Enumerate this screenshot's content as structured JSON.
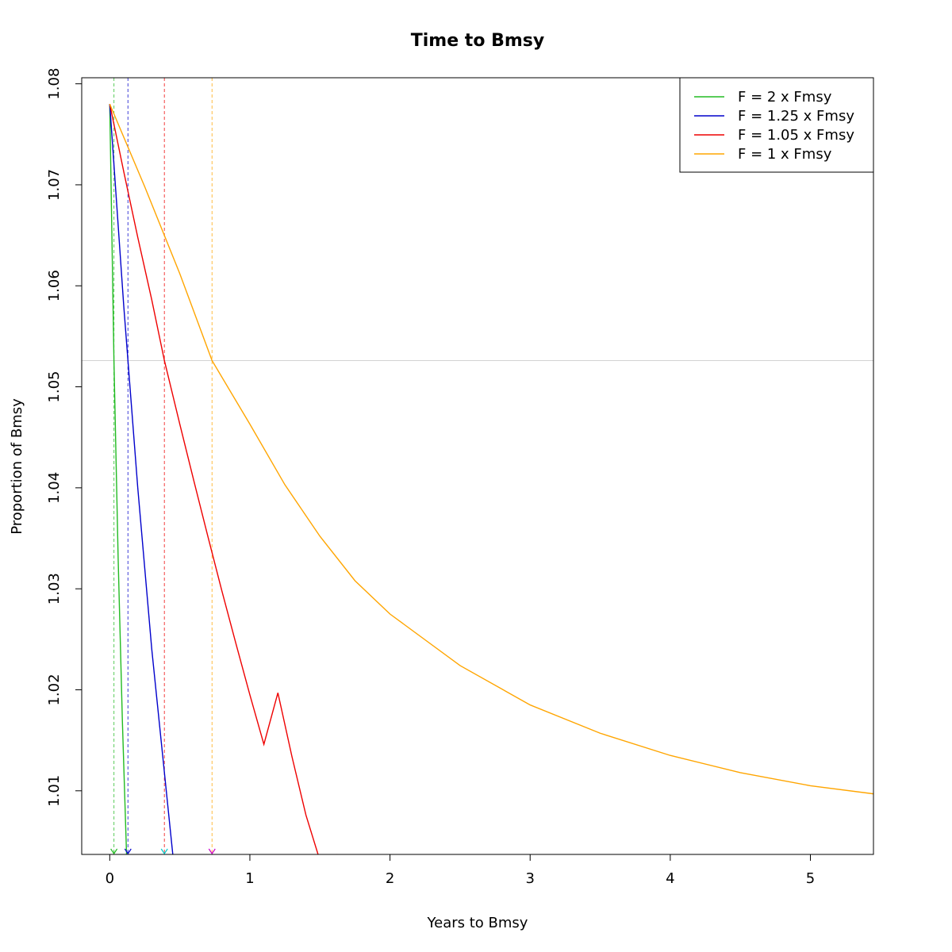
{
  "chart_data": {
    "type": "line",
    "title": "Time to Bmsy",
    "xlabel": "Years to Bmsy",
    "ylabel": "Proportion of Bmsy",
    "xlim": [
      -0.2,
      5.45
    ],
    "ylim": [
      1.0037,
      1.0806
    ],
    "xticks": [
      0,
      1,
      2,
      3,
      4,
      5
    ],
    "xtick_labels": [
      "0",
      "1",
      "2",
      "3",
      "4",
      "5"
    ],
    "yticks": [
      1.01,
      1.02,
      1.03,
      1.04,
      1.05,
      1.06,
      1.07,
      1.08
    ],
    "ytick_labels": [
      "1.01",
      "1.02",
      "1.03",
      "1.04",
      "1.05",
      "1.06",
      "1.07",
      "1.08"
    ],
    "grid": false,
    "legend_position": "top-right",
    "reference_line": {
      "y": 1.0526,
      "color": "#d3d3d3"
    },
    "series": [
      {
        "name": "F = 2 x Fmsy",
        "color": "#22bb22",
        "marker_color": "#22bb22",
        "vline_x": 0.03,
        "x": [
          0,
          0.03,
          0.06,
          0.09,
          0.12
        ],
        "y": [
          1.078,
          1.0526,
          1.033,
          1.017,
          1.0037
        ]
      },
      {
        "name": "F = 1.25 x Fmsy",
        "color": "#0000cc",
        "marker_color": "#0000cc",
        "vline_x": 0.13,
        "x": [
          0,
          0.1,
          0.2,
          0.3,
          0.45
        ],
        "y": [
          1.078,
          1.058,
          1.04,
          1.024,
          1.0037
        ]
      },
      {
        "name": "F = 1.05 x Fmsy",
        "color": "#ee0000",
        "marker_color": "#00cccc",
        "vline_x": 0.39,
        "x": [
          0,
          0.1,
          0.2,
          0.3,
          0.39,
          0.5,
          0.6,
          0.7,
          0.8,
          0.9,
          1.0,
          1.1,
          1.2,
          1.3,
          1.4,
          1.5,
          1.62
        ],
        "y": [
          1.078,
          1.0713,
          1.0648,
          1.0586,
          1.0526,
          1.0463,
          1.0407,
          1.0352,
          1.0298,
          1.0246,
          1.0195,
          1.0146,
          1.0197,
          1.0134,
          1.0076,
          1.0031,
          1.0037
        ]
      },
      {
        "name": "F = 1 x Fmsy",
        "color": "#ffa500",
        "marker_color": "#cc00cc",
        "vline_x": 0.73,
        "x": [
          0,
          0.25,
          0.5,
          0.73,
          1.0,
          1.25,
          1.5,
          1.75,
          2.0,
          2.5,
          3.0,
          3.5,
          4.0,
          4.5,
          5.0,
          5.45
        ],
        "y": [
          1.078,
          1.0698,
          1.0612,
          1.0526,
          1.0463,
          1.0403,
          1.0352,
          1.0308,
          1.0275,
          1.0224,
          1.0185,
          1.0157,
          1.0135,
          1.0118,
          1.0105,
          1.0097
        ]
      }
    ]
  }
}
